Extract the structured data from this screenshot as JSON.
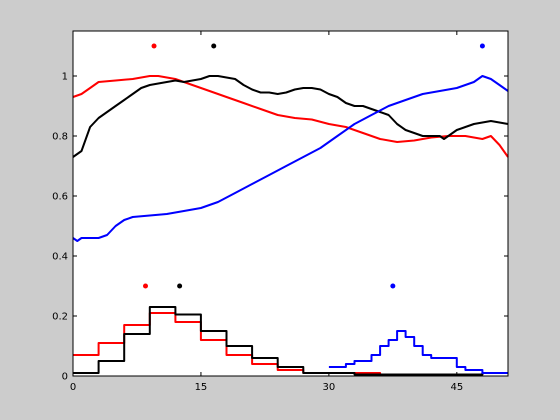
{
  "chart_data": {
    "type": "line",
    "title": "",
    "xlabel": "",
    "ylabel": "",
    "xlim": [
      0,
      51
    ],
    "ylim": [
      0,
      1.15
    ],
    "xticks": [
      0,
      15,
      30,
      45
    ],
    "xtick_labels": [
      "0",
      "15",
      "30",
      "45"
    ],
    "yticks": [
      0,
      0.2,
      0.4,
      0.6,
      0.8,
      1
    ],
    "ytick_labels": [
      "0",
      "0.2",
      "0.4",
      "0.6",
      "0.8",
      "1"
    ],
    "grid": false,
    "legend": "none",
    "series": [
      {
        "color": "#ff0000",
        "kind": "line",
        "points": [
          [
            0,
            0.93
          ],
          [
            1,
            0.94
          ],
          [
            2,
            0.96
          ],
          [
            3,
            0.98
          ],
          [
            5,
            0.985
          ],
          [
            7,
            0.99
          ],
          [
            9,
            1.0
          ],
          [
            10,
            1.0
          ],
          [
            12,
            0.99
          ],
          [
            14,
            0.97
          ],
          [
            16,
            0.95
          ],
          [
            18,
            0.93
          ],
          [
            20,
            0.91
          ],
          [
            22,
            0.89
          ],
          [
            24,
            0.87
          ],
          [
            26,
            0.86
          ],
          [
            28,
            0.855
          ],
          [
            30,
            0.84
          ],
          [
            32,
            0.83
          ],
          [
            34,
            0.81
          ],
          [
            36,
            0.79
          ],
          [
            38,
            0.78
          ],
          [
            40,
            0.785
          ],
          [
            42,
            0.795
          ],
          [
            44,
            0.8
          ],
          [
            46,
            0.8
          ],
          [
            48,
            0.79
          ],
          [
            49,
            0.8
          ],
          [
            50,
            0.77
          ],
          [
            51,
            0.73
          ]
        ]
      },
      {
        "color": "#000000",
        "kind": "line",
        "points": [
          [
            0,
            0.73
          ],
          [
            1,
            0.75
          ],
          [
            1.5,
            0.79
          ],
          [
            2,
            0.83
          ],
          [
            3,
            0.86
          ],
          [
            4,
            0.88
          ],
          [
            5,
            0.9
          ],
          [
            6,
            0.92
          ],
          [
            7,
            0.94
          ],
          [
            8,
            0.96
          ],
          [
            9,
            0.97
          ],
          [
            10,
            0.975
          ],
          [
            11,
            0.98
          ],
          [
            12,
            0.985
          ],
          [
            13,
            0.98
          ],
          [
            14,
            0.985
          ],
          [
            15,
            0.99
          ],
          [
            16,
            1.0
          ],
          [
            17,
            1.0
          ],
          [
            18,
            0.995
          ],
          [
            19,
            0.99
          ],
          [
            20,
            0.97
          ],
          [
            21,
            0.955
          ],
          [
            22,
            0.945
          ],
          [
            23,
            0.945
          ],
          [
            24,
            0.94
          ],
          [
            25,
            0.945
          ],
          [
            26,
            0.955
          ],
          [
            27,
            0.96
          ],
          [
            28,
            0.96
          ],
          [
            29,
            0.955
          ],
          [
            30,
            0.94
          ],
          [
            31,
            0.93
          ],
          [
            32,
            0.91
          ],
          [
            33,
            0.9
          ],
          [
            34,
            0.9
          ],
          [
            35,
            0.89
          ],
          [
            36,
            0.88
          ],
          [
            37,
            0.87
          ],
          [
            38,
            0.84
          ],
          [
            39,
            0.82
          ],
          [
            40,
            0.81
          ],
          [
            41,
            0.8
          ],
          [
            42,
            0.8
          ],
          [
            43,
            0.8
          ],
          [
            43.5,
            0.79
          ],
          [
            44,
            0.8
          ],
          [
            45,
            0.82
          ],
          [
            46,
            0.83
          ],
          [
            47,
            0.84
          ],
          [
            48,
            0.845
          ],
          [
            49,
            0.85
          ],
          [
            50,
            0.845
          ],
          [
            51,
            0.84
          ]
        ]
      },
      {
        "color": "#0000ff",
        "kind": "line",
        "points": [
          [
            0,
            0.46
          ],
          [
            0.5,
            0.45
          ],
          [
            1,
            0.46
          ],
          [
            2,
            0.46
          ],
          [
            3,
            0.46
          ],
          [
            4,
            0.47
          ],
          [
            5,
            0.5
          ],
          [
            6,
            0.52
          ],
          [
            7,
            0.53
          ],
          [
            9,
            0.535
          ],
          [
            11,
            0.54
          ],
          [
            13,
            0.55
          ],
          [
            15,
            0.56
          ],
          [
            17,
            0.58
          ],
          [
            19,
            0.61
          ],
          [
            21,
            0.64
          ],
          [
            23,
            0.67
          ],
          [
            25,
            0.7
          ],
          [
            27,
            0.73
          ],
          [
            29,
            0.76
          ],
          [
            31,
            0.8
          ],
          [
            33,
            0.84
          ],
          [
            35,
            0.87
          ],
          [
            37,
            0.9
          ],
          [
            39,
            0.92
          ],
          [
            41,
            0.94
          ],
          [
            43,
            0.95
          ],
          [
            45,
            0.96
          ],
          [
            47,
            0.98
          ],
          [
            48,
            1.0
          ],
          [
            49,
            0.99
          ],
          [
            50,
            0.97
          ],
          [
            51,
            0.95
          ]
        ]
      },
      {
        "color": "#ff0000",
        "kind": "step",
        "x_edges": [
          0,
          3,
          6,
          9,
          12,
          15,
          18,
          21,
          24,
          27,
          30,
          33,
          36,
          39,
          42,
          45,
          48,
          51
        ],
        "values": [
          0.07,
          0.11,
          0.17,
          0.21,
          0.18,
          0.12,
          0.07,
          0.04,
          0.02,
          0.01,
          0.01,
          0.01,
          0.005,
          0.005,
          0.005,
          0.005,
          0.01
        ]
      },
      {
        "color": "#000000",
        "kind": "step",
        "x_edges": [
          0,
          3,
          6,
          9,
          12,
          15,
          18,
          21,
          24,
          27,
          30,
          33,
          36,
          39,
          42,
          45,
          48,
          51
        ],
        "values": [
          0.01,
          0.05,
          0.14,
          0.23,
          0.205,
          0.15,
          0.1,
          0.06,
          0.03,
          0.01,
          0.01,
          0.005,
          0.005,
          0.005,
          0.005,
          0.005,
          0.01
        ]
      },
      {
        "color": "#0000ff",
        "kind": "step",
        "x_edges": [
          30,
          31,
          32,
          33,
          34,
          35,
          36,
          37,
          38,
          39,
          40,
          41,
          42,
          43,
          44,
          45,
          46,
          47,
          48,
          49,
          51
        ],
        "values": [
          0.03,
          0.03,
          0.04,
          0.05,
          0.05,
          0.07,
          0.1,
          0.12,
          0.15,
          0.13,
          0.1,
          0.07,
          0.06,
          0.06,
          0.06,
          0.03,
          0.02,
          0.02,
          0.01,
          0.01
        ]
      }
    ],
    "markers": [
      {
        "color": "#ff0000",
        "x": 9.5,
        "y": 1.1
      },
      {
        "color": "#000000",
        "x": 16.5,
        "y": 1.1
      },
      {
        "color": "#0000ff",
        "x": 48,
        "y": 1.1
      },
      {
        "color": "#ff0000",
        "x": 8.5,
        "y": 0.3
      },
      {
        "color": "#000000",
        "x": 12.5,
        "y": 0.3
      },
      {
        "color": "#0000ff",
        "x": 37.5,
        "y": 0.3
      }
    ]
  }
}
